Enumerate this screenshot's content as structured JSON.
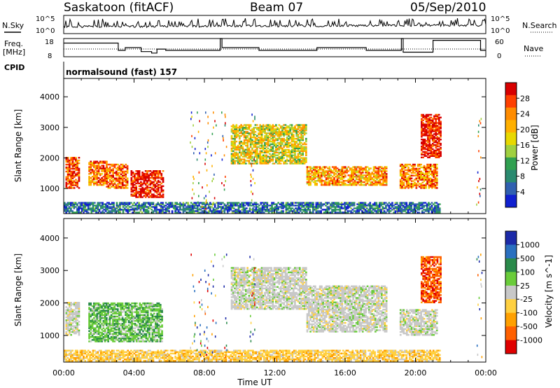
{
  "header": {
    "site": "Saskatoon (fitACF)",
    "beam": "Beam 07",
    "date": "05/Sep/2010"
  },
  "top_panels": {
    "nsky_label": "N.Sky",
    "nsky_ticks": [
      "10^5",
      "10^0"
    ],
    "nsearch_label": "N.Search",
    "nsearch_ticks": [
      "10^5",
      "10^0"
    ],
    "freq_label_1": "Freq.",
    "freq_label_2": "[MHz]",
    "freq_ticks": [
      "18",
      "8"
    ],
    "nave_label": "Nave",
    "nave_ticks": [
      "60",
      "0"
    ],
    "cpid_label": "CPID",
    "cpid_value": "normalsound (fast) 157",
    "freq_steps": [
      {
        "start": 0.0,
        "end": 3.1,
        "mhz": 15.5
      },
      {
        "start": 3.1,
        "end": 3.5,
        "mhz": 11.5
      },
      {
        "start": 3.5,
        "end": 4.4,
        "mhz": 13.0
      },
      {
        "start": 4.4,
        "end": 5.0,
        "mhz": 10.8
      },
      {
        "start": 5.0,
        "end": 5.3,
        "mhz": 10.0
      },
      {
        "start": 5.3,
        "end": 5.8,
        "mhz": 12.2
      },
      {
        "start": 5.8,
        "end": 8.9,
        "mhz": 11.5
      },
      {
        "start": 8.9,
        "end": 9.0,
        "mhz": 18.0
      },
      {
        "start": 9.0,
        "end": 11.1,
        "mhz": 13.0
      },
      {
        "start": 11.1,
        "end": 14.4,
        "mhz": 11.5
      },
      {
        "start": 14.4,
        "end": 17.2,
        "mhz": 13.0
      },
      {
        "start": 17.2,
        "end": 19.2,
        "mhz": 11.5
      },
      {
        "start": 19.2,
        "end": 19.3,
        "mhz": 18.0
      },
      {
        "start": 19.3,
        "end": 21.0,
        "mhz": 10.5
      },
      {
        "start": 21.0,
        "end": 23.7,
        "mhz": 17.0
      },
      {
        "start": 23.7,
        "end": 24.0,
        "mhz": 11.5
      }
    ]
  },
  "chart_data": [
    {
      "type": "heatmap",
      "panel": "power",
      "ylabel": "Slant Range [km]",
      "xlabel": "Time UT",
      "ylim": [
        180,
        4600
      ],
      "xlim": [
        0,
        24
      ],
      "x_ticks": [
        "00:00",
        "04:00",
        "08:00",
        "12:00",
        "16:00",
        "20:00",
        "00:00"
      ],
      "y_ticks": [
        1000,
        2000,
        3000,
        4000
      ],
      "colorbar_label": "Power [dB]",
      "colorbar_ticks": [
        "28",
        "24",
        "20",
        "16",
        "12",
        "8",
        "4"
      ],
      "colorbar_colors": [
        "#d80000",
        "#ff4000",
        "#ff8c00",
        "#ffb000",
        "#e8d800",
        "#a0d040",
        "#30a050",
        "#2a8a70",
        "#3060b0",
        "#1020d0"
      ],
      "echo_regions": [
        {
          "t0": 0.1,
          "t1": 0.9,
          "r0": 1000,
          "r1": 2000,
          "level": 0.85
        },
        {
          "t0": 1.4,
          "t1": 2.4,
          "r0": 1100,
          "r1": 1900,
          "level": 0.75
        },
        {
          "t0": 2.4,
          "t1": 3.6,
          "r0": 1000,
          "r1": 1800,
          "level": 0.8
        },
        {
          "t0": 3.8,
          "t1": 5.6,
          "r0": 700,
          "r1": 1600,
          "level": 0.95
        },
        {
          "t0": 9.5,
          "t1": 13.8,
          "r0": 1800,
          "r1": 3100,
          "level": 0.55
        },
        {
          "t0": 13.8,
          "t1": 18.3,
          "r0": 1100,
          "r1": 1700,
          "level": 0.7
        },
        {
          "t0": 19.1,
          "t1": 21.2,
          "r0": 1000,
          "r1": 1800,
          "level": 0.75
        },
        {
          "t0": 20.3,
          "t1": 21.4,
          "r0": 2000,
          "r1": 3400,
          "level": 0.95
        },
        {
          "t0": 0.0,
          "t1": 21.4,
          "r0": 200,
          "r1": 550,
          "level": 0.2
        }
      ]
    },
    {
      "type": "heatmap",
      "panel": "velocity",
      "ylabel": "Slant Range [km]",
      "xlabel": "Time UT",
      "ylim": [
        180,
        4600
      ],
      "xlim": [
        0,
        24
      ],
      "x_ticks": [
        "00:00",
        "04:00",
        "08:00",
        "12:00",
        "16:00",
        "20:00",
        "00:00"
      ],
      "y_ticks": [
        1000,
        2000,
        3000,
        4000
      ],
      "colorbar_label": "Velocity [m s^-1]",
      "colorbar_ticks": [
        "1000",
        "500",
        "100",
        "25",
        "-25",
        "-100",
        "-500",
        "-1000"
      ],
      "colorbar_colors": [
        "#1c2aa8",
        "#2a70c0",
        "#2a8a4a",
        "#6acc3a",
        "#c8c8c8",
        "#ffd040",
        "#ffa000",
        "#ff6000",
        "#e00000"
      ],
      "echo_regions": [
        {
          "t0": 0.1,
          "t1": 0.9,
          "r0": 1000,
          "r1": 2000,
          "level": 0.45
        },
        {
          "t0": 1.4,
          "t1": 5.6,
          "r0": 800,
          "r1": 2000,
          "level": 0.35
        },
        {
          "t0": 9.5,
          "t1": 13.8,
          "r0": 1800,
          "r1": 3100,
          "level": 0.55
        },
        {
          "t0": 13.8,
          "t1": 18.3,
          "r0": 1100,
          "r1": 2500,
          "level": 0.5
        },
        {
          "t0": 19.1,
          "t1": 21.2,
          "r0": 1000,
          "r1": 1800,
          "level": 0.5
        },
        {
          "t0": 20.3,
          "t1": 21.4,
          "r0": 2000,
          "r1": 3400,
          "level": 0.85
        },
        {
          "t0": 0.0,
          "t1": 21.4,
          "r0": 200,
          "r1": 550,
          "level": 0.62
        }
      ]
    }
  ]
}
